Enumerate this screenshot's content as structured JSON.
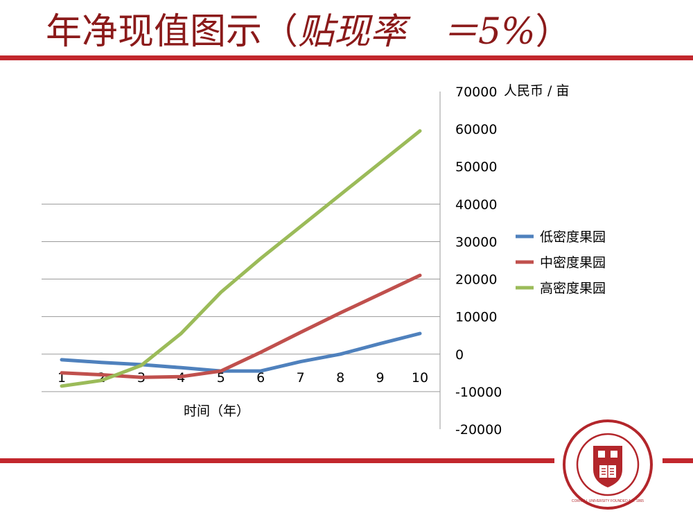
{
  "slide": {
    "title_main": "年净现值图示（",
    "title_rate_label": "贴现率　＝",
    "title_rate_value": "5%",
    "title_close": "）"
  },
  "colors": {
    "title": "#8b1a1a",
    "rule": "#c2272d",
    "seal": "#b3262b"
  },
  "seal": {
    "text": "CORNELL UNIVERSITY FOUNDED A.D. 1865"
  },
  "chart_data": {
    "type": "line",
    "categories": [
      "1",
      "2",
      "3",
      "4",
      "5",
      "6",
      "7",
      "8",
      "9",
      "10"
    ],
    "series": [
      {
        "name": "低密度果园",
        "color": "#4f81bd",
        "values": [
          -1500,
          -2200,
          -2800,
          -3600,
          -4500,
          -4500,
          -2000,
          0,
          2800,
          5500
        ]
      },
      {
        "name": "中密度果园",
        "color": "#c0504d",
        "values": [
          -5000,
          -5500,
          -6200,
          -6000,
          -4500,
          500,
          5800,
          11000,
          16000,
          21000
        ]
      },
      {
        "name": "高密度果园",
        "color": "#9bbb59",
        "values": [
          -8500,
          -7000,
          -3000,
          5500,
          16500,
          25500,
          34000,
          42500,
          51000,
          59500
        ]
      }
    ],
    "title": "",
    "xlabel": "时间（年）",
    "ylabel": "人民币 / 亩",
    "ylim": [
      -20000,
      70000
    ],
    "yticks": [
      "70000",
      "60000",
      "50000",
      "40000",
      "30000",
      "20000",
      "10000",
      "0",
      "-10000",
      "-20000"
    ],
    "grid": "horizontal",
    "legend_position": "right"
  }
}
